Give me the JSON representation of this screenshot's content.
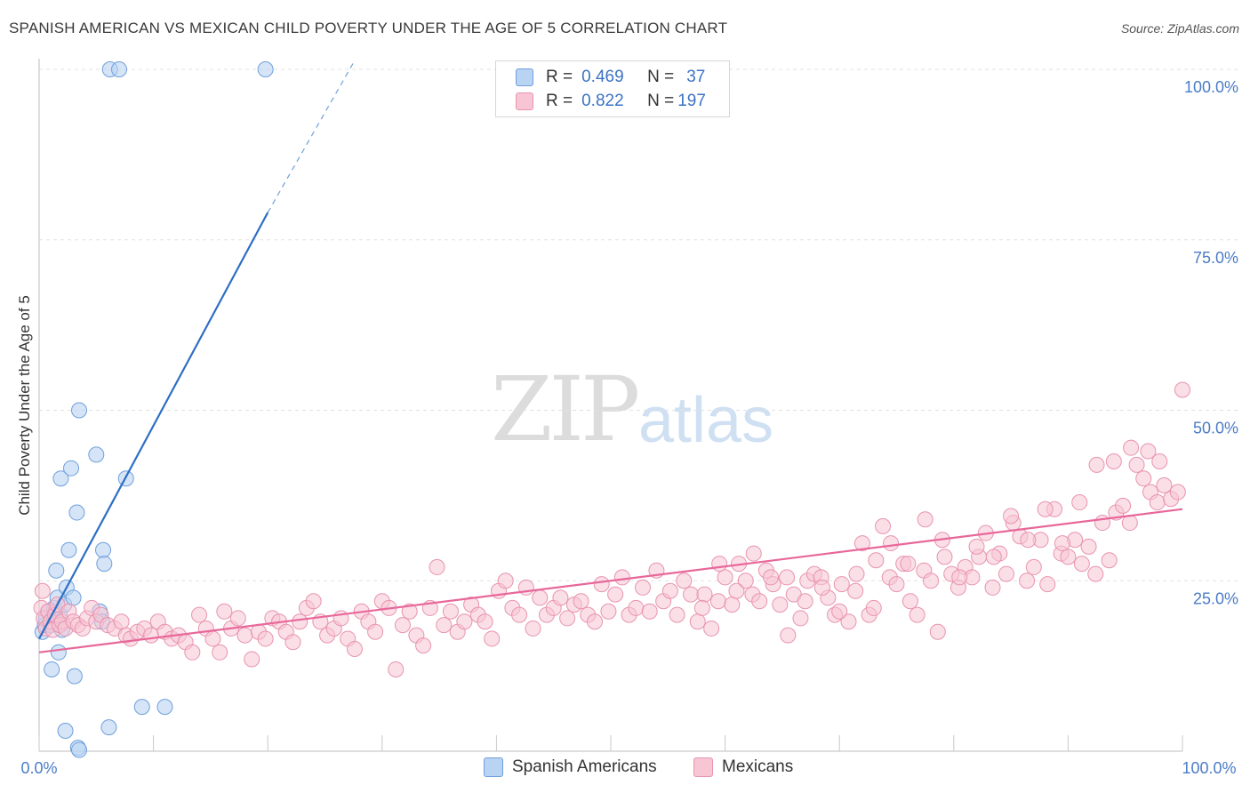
{
  "title": "SPANISH AMERICAN VS MEXICAN CHILD POVERTY UNDER THE AGE OF 5 CORRELATION CHART",
  "source": "Source: ZipAtlas.com",
  "watermark": {
    "zip": "ZIP",
    "atlas": "atlas"
  },
  "legend": {
    "r_label": "R =",
    "n_label": "N =",
    "rows": [
      {
        "r": "0.469",
        "n": "37"
      },
      {
        "r": "0.822",
        "n": "197"
      }
    ]
  },
  "colors": {
    "blue_fill": "#b9d3f2",
    "blue_stroke": "#6f9fdc",
    "blue_line": "#2e6fc4",
    "pink_fill": "#f7c5d4",
    "pink_stroke": "#e893b0",
    "pink_line": "#e8679a",
    "tick_text": "#4a7cc7",
    "grid": "#e2e2e2"
  },
  "chart_data": {
    "type": "scatter",
    "title": "SPANISH AMERICAN VS MEXICAN CHILD POVERTY UNDER THE AGE OF 5 CORRELATION CHART",
    "xlabel": "",
    "ylabel": "Child Poverty Under the Age of 5",
    "xlim": [
      0,
      100
    ],
    "ylim": [
      0,
      100
    ],
    "x_tick_labels": [
      "0.0%",
      "100.0%"
    ],
    "y_ticks": [
      25,
      50,
      75,
      100
    ],
    "y_tick_labels": [
      "25.0%",
      "50.0%",
      "75.0%",
      "100.0%"
    ],
    "series": [
      {
        "name": "Spanish Americans",
        "r": 0.469,
        "n": 37,
        "trend": {
          "x0": 0,
          "y0": 16.5,
          "x1": 20,
          "y1": 79,
          "dash_to_x": 27.5,
          "dash_to_y": 101
        },
        "points": [
          [
            0.3,
            17.5
          ],
          [
            0.5,
            18.5
          ],
          [
            0.6,
            19.5
          ],
          [
            0.8,
            20.5
          ],
          [
            1.0,
            18.5
          ],
          [
            1.2,
            20.0
          ],
          [
            1.3,
            21.0
          ],
          [
            1.5,
            26.5
          ],
          [
            1.6,
            22.5
          ],
          [
            1.7,
            14.5
          ],
          [
            1.8,
            20.0
          ],
          [
            2.0,
            17.8
          ],
          [
            2.2,
            21.5
          ],
          [
            1.9,
            40.0
          ],
          [
            2.4,
            24.0
          ],
          [
            2.3,
            3.0
          ],
          [
            1.1,
            12.0
          ],
          [
            2.6,
            29.5
          ],
          [
            2.8,
            41.5
          ],
          [
            3.0,
            22.5
          ],
          [
            3.1,
            11.0
          ],
          [
            3.3,
            35.0
          ],
          [
            3.4,
            0.5
          ],
          [
            3.5,
            0.2
          ],
          [
            3.5,
            50.0
          ],
          [
            5.0,
            43.5
          ],
          [
            5.3,
            20.5
          ],
          [
            5.5,
            19.0
          ],
          [
            5.6,
            29.5
          ],
          [
            5.7,
            27.5
          ],
          [
            6.1,
            3.5
          ],
          [
            7.6,
            40.0
          ],
          [
            9.0,
            6.5
          ],
          [
            11.0,
            6.5
          ],
          [
            6.2,
            100.0
          ],
          [
            7.0,
            100.0
          ],
          [
            19.8,
            100.0
          ]
        ]
      },
      {
        "name": "Mexicans",
        "r": 0.822,
        "n": 197,
        "trend": {
          "x0": 0,
          "y0": 14.5,
          "x1": 100,
          "y1": 35.5
        },
        "points": [
          [
            0.2,
            21.0
          ],
          [
            0.3,
            23.5
          ],
          [
            0.4,
            19.5
          ],
          [
            0.6,
            18.0
          ],
          [
            0.8,
            20.5
          ],
          [
            1.0,
            19.0
          ],
          [
            1.2,
            17.8
          ],
          [
            1.4,
            20.0
          ],
          [
            1.6,
            21.5
          ],
          [
            1.8,
            18.5
          ],
          [
            2.0,
            19.0
          ],
          [
            2.3,
            18.0
          ],
          [
            2.6,
            20.5
          ],
          [
            3.0,
            19.0
          ],
          [
            3.4,
            18.5
          ],
          [
            3.8,
            18.0
          ],
          [
            4.2,
            19.5
          ],
          [
            4.6,
            21.0
          ],
          [
            5.0,
            19.0
          ],
          [
            5.4,
            20.0
          ],
          [
            6.0,
            18.5
          ],
          [
            6.6,
            18.0
          ],
          [
            7.2,
            19.0
          ],
          [
            7.6,
            17.0
          ],
          [
            8.0,
            16.5
          ],
          [
            8.6,
            17.5
          ],
          [
            9.2,
            18.0
          ],
          [
            9.8,
            17.0
          ],
          [
            10.4,
            19.0
          ],
          [
            11.0,
            17.5
          ],
          [
            11.6,
            16.5
          ],
          [
            12.2,
            17.0
          ],
          [
            12.8,
            16.0
          ],
          [
            13.4,
            14.5
          ],
          [
            14.0,
            20.0
          ],
          [
            14.6,
            18.0
          ],
          [
            15.2,
            16.5
          ],
          [
            15.8,
            14.5
          ],
          [
            16.2,
            20.5
          ],
          [
            16.8,
            18.0
          ],
          [
            17.4,
            19.5
          ],
          [
            18.0,
            17.0
          ],
          [
            18.6,
            13.5
          ],
          [
            19.2,
            17.5
          ],
          [
            19.8,
            16.5
          ],
          [
            20.4,
            19.5
          ],
          [
            21.0,
            19.0
          ],
          [
            21.6,
            17.5
          ],
          [
            22.2,
            16.0
          ],
          [
            22.8,
            19.0
          ],
          [
            23.4,
            21.0
          ],
          [
            24.0,
            22.0
          ],
          [
            24.6,
            19.0
          ],
          [
            25.2,
            17.0
          ],
          [
            25.8,
            18.0
          ],
          [
            26.4,
            19.5
          ],
          [
            27.0,
            16.5
          ],
          [
            27.6,
            15.0
          ],
          [
            28.2,
            20.5
          ],
          [
            28.8,
            19.0
          ],
          [
            29.4,
            17.5
          ],
          [
            30.0,
            22.0
          ],
          [
            30.6,
            21.0
          ],
          [
            31.2,
            12.0
          ],
          [
            31.8,
            18.5
          ],
          [
            32.4,
            20.5
          ],
          [
            33.0,
            17.0
          ],
          [
            33.6,
            15.5
          ],
          [
            34.2,
            21.0
          ],
          [
            34.8,
            27.0
          ],
          [
            35.4,
            18.5
          ],
          [
            36.0,
            20.5
          ],
          [
            36.6,
            17.5
          ],
          [
            37.2,
            19.0
          ],
          [
            37.8,
            21.5
          ],
          [
            38.4,
            20.0
          ],
          [
            39.0,
            19.0
          ],
          [
            39.6,
            16.5
          ],
          [
            40.2,
            23.5
          ],
          [
            40.8,
            25.0
          ],
          [
            41.4,
            21.0
          ],
          [
            42.0,
            20.0
          ],
          [
            42.6,
            24.0
          ],
          [
            43.2,
            18.0
          ],
          [
            43.8,
            22.5
          ],
          [
            44.4,
            20.0
          ],
          [
            45.0,
            21.0
          ],
          [
            45.6,
            22.5
          ],
          [
            46.2,
            19.5
          ],
          [
            46.8,
            21.5
          ],
          [
            47.4,
            22.0
          ],
          [
            48.0,
            20.0
          ],
          [
            48.6,
            19.0
          ],
          [
            49.2,
            24.5
          ],
          [
            49.8,
            20.5
          ],
          [
            50.4,
            23.0
          ],
          [
            51.0,
            25.5
          ],
          [
            51.6,
            20.0
          ],
          [
            52.2,
            21.0
          ],
          [
            52.8,
            24.0
          ],
          [
            53.4,
            20.5
          ],
          [
            54.0,
            26.5
          ],
          [
            54.6,
            22.0
          ],
          [
            55.2,
            23.5
          ],
          [
            55.8,
            20.0
          ],
          [
            56.4,
            25.0
          ],
          [
            57.0,
            23.0
          ],
          [
            57.6,
            19.0
          ],
          [
            58.2,
            23.0
          ],
          [
            58.8,
            18.0
          ],
          [
            59.4,
            22.0
          ],
          [
            60.0,
            25.5
          ],
          [
            60.6,
            21.5
          ],
          [
            61.2,
            27.5
          ],
          [
            61.8,
            25.0
          ],
          [
            62.4,
            23.0
          ],
          [
            63.0,
            22.0
          ],
          [
            63.6,
            26.5
          ],
          [
            64.2,
            24.5
          ],
          [
            64.8,
            21.5
          ],
          [
            65.4,
            25.5
          ],
          [
            66.0,
            23.0
          ],
          [
            66.6,
            19.5
          ],
          [
            67.2,
            25.0
          ],
          [
            67.8,
            26.0
          ],
          [
            68.4,
            25.5
          ],
          [
            69.0,
            22.5
          ],
          [
            69.6,
            20.0
          ],
          [
            70.2,
            24.5
          ],
          [
            70.8,
            19.0
          ],
          [
            71.4,
            23.5
          ],
          [
            72.0,
            30.5
          ],
          [
            72.6,
            20.0
          ],
          [
            73.2,
            28.0
          ],
          [
            73.8,
            33.0
          ],
          [
            74.4,
            25.5
          ],
          [
            75.0,
            24.5
          ],
          [
            75.6,
            27.5
          ],
          [
            76.2,
            22.0
          ],
          [
            76.8,
            20.0
          ],
          [
            77.4,
            26.5
          ],
          [
            78.0,
            25.0
          ],
          [
            78.6,
            17.5
          ],
          [
            79.2,
            28.5
          ],
          [
            79.8,
            26.0
          ],
          [
            80.4,
            24.0
          ],
          [
            81.0,
            27.0
          ],
          [
            81.6,
            25.5
          ],
          [
            82.2,
            28.5
          ],
          [
            82.8,
            32.0
          ],
          [
            83.4,
            24.0
          ],
          [
            84.0,
            29.0
          ],
          [
            84.6,
            26.0
          ],
          [
            85.2,
            33.5
          ],
          [
            85.8,
            31.5
          ],
          [
            86.4,
            25.0
          ],
          [
            87.0,
            27.0
          ],
          [
            87.6,
            31.0
          ],
          [
            88.2,
            24.5
          ],
          [
            88.8,
            35.5
          ],
          [
            89.4,
            29.0
          ],
          [
            90.0,
            28.5
          ],
          [
            90.6,
            31.0
          ],
          [
            91.2,
            27.5
          ],
          [
            91.8,
            30.0
          ],
          [
            92.4,
            26.0
          ],
          [
            93.0,
            33.5
          ],
          [
            93.6,
            28.0
          ],
          [
            94.2,
            35.0
          ],
          [
            94.8,
            36.0
          ],
          [
            95.4,
            33.5
          ],
          [
            96.0,
            42.0
          ],
          [
            96.6,
            40.0
          ],
          [
            97.2,
            38.0
          ],
          [
            97.8,
            36.5
          ],
          [
            98.4,
            39.0
          ],
          [
            99.0,
            37.0
          ],
          [
            99.6,
            38.0
          ],
          [
            100.0,
            53.0
          ],
          [
            98.0,
            42.5
          ],
          [
            97.0,
            44.0
          ],
          [
            95.5,
            44.5
          ],
          [
            94.0,
            42.5
          ],
          [
            92.5,
            42.0
          ],
          [
            91.0,
            36.5
          ],
          [
            89.5,
            30.5
          ],
          [
            88.0,
            35.5
          ],
          [
            86.5,
            31.0
          ],
          [
            85.0,
            34.5
          ],
          [
            83.5,
            28.5
          ],
          [
            82.0,
            30.0
          ],
          [
            80.5,
            25.5
          ],
          [
            79.0,
            31.0
          ],
          [
            77.5,
            34.0
          ],
          [
            76.0,
            27.5
          ],
          [
            74.5,
            30.5
          ],
          [
            73.0,
            21.0
          ],
          [
            71.5,
            26.0
          ],
          [
            70.0,
            20.5
          ],
          [
            68.5,
            24.0
          ],
          [
            67.0,
            22.0
          ],
          [
            65.5,
            17.0
          ],
          [
            64.0,
            25.5
          ],
          [
            62.5,
            29.0
          ],
          [
            61.0,
            23.5
          ],
          [
            59.5,
            27.5
          ],
          [
            58.0,
            21.0
          ]
        ]
      }
    ]
  },
  "bottom_legend": [
    "Spanish Americans",
    "Mexicans"
  ]
}
